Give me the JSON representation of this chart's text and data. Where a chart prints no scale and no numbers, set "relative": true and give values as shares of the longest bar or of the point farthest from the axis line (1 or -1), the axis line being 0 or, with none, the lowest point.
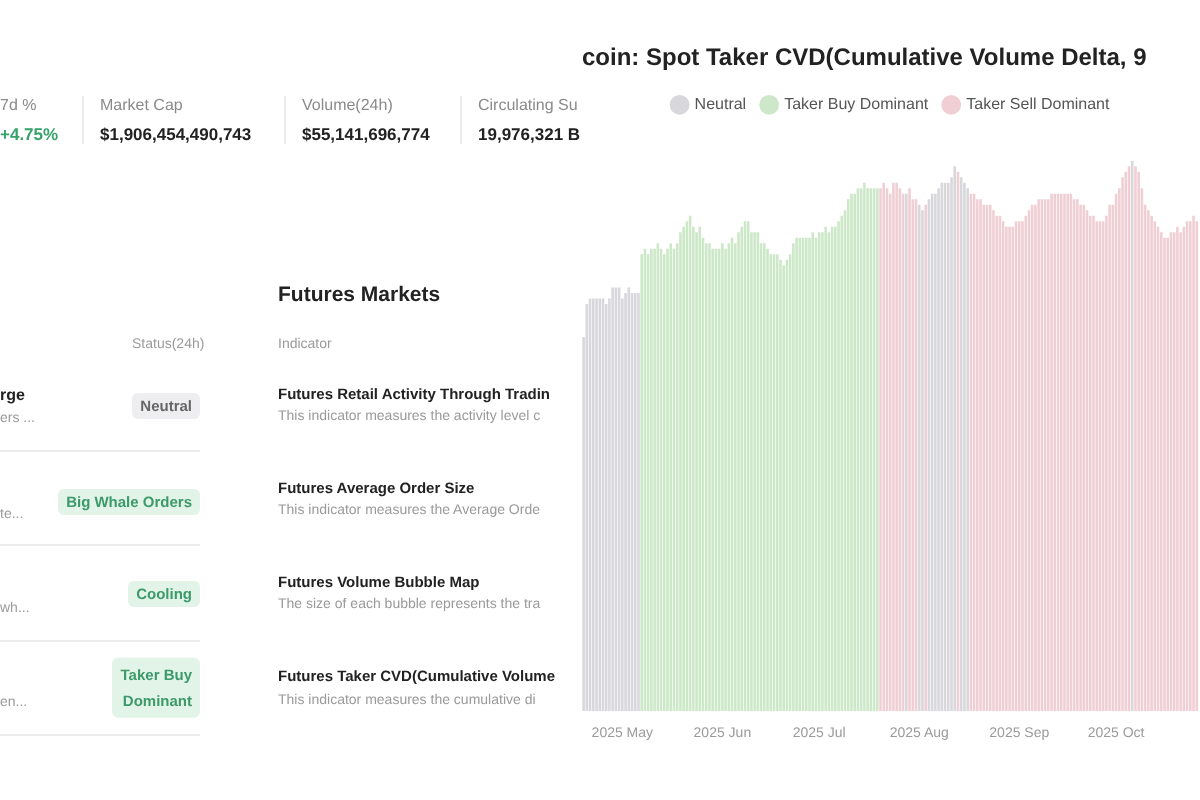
{
  "chart_data": [
    {
      "type": "other",
      "annotations": [
        "7d %",
        "+4.75%",
        "Market Cap",
        "$1,906,454,490,743",
        "Volume(24h)",
        "$55,141,696,774",
        "Circulating Su",
        "19,976,321 B",
        "Status(24h)",
        "rge",
        "ers ...",
        "Neutral",
        "te...",
        "Big Whale Orders",
        "wh...",
        "Cooling",
        "en...",
        "Taker Buy Dominant",
        "Futures Markets",
        "Indicator",
        "Futures Retail Activity Through Tradin",
        "This indicator measures the activity level c",
        "Futures Average Order Size",
        "This indicator measures the Average Orde",
        "Futures Volume Bubble Map",
        "The size of each bubble represents the tra",
        "Futures Taker CVD(Cumulative Volume",
        "This indicator measures the cumulative di"
      ]
    },
    {
      "type": "bar",
      "title": "coin: Spot Taker CVD(Cumulative Volume Delta, 9",
      "relative": true,
      "legend": "top",
      "xlim": [
        "2025-04-18T12:00",
        "2025-10-27"
      ],
      "xticks": [
        {
          "value": "2025-05-01",
          "label": "2025 May"
        },
        {
          "value": "2025-06-01",
          "label": "2025 Jun"
        },
        {
          "value": "2025-07-01",
          "label": "2025 Jul"
        },
        {
          "value": "2025-08-01",
          "label": "2025 Aug"
        },
        {
          "value": "2025-09-01",
          "label": "2025 Sep"
        },
        {
          "value": "2025-10-01",
          "label": "2025 Oct"
        }
      ],
      "series": [
        {
          "name": "Neutral",
          "color": "#d8d8dc",
          "x": [
            "2025-04-19",
            "2025-04-20",
            "2025-04-21",
            "2025-04-22",
            "2025-04-23",
            "2025-04-24",
            "2025-04-25",
            "2025-04-26",
            "2025-04-27",
            "2025-04-28",
            "2025-04-29",
            "2025-04-30",
            "2025-05-01",
            "2025-05-02",
            "2025-05-03",
            "2025-05-04",
            "2025-05-05",
            "2025-05-06",
            "2025-07-28",
            "2025-08-01",
            "2025-08-02",
            "2025-08-04",
            "2025-08-05",
            "2025-08-06",
            "2025-08-07",
            "2025-08-08",
            "2025-08-09",
            "2025-08-10",
            "2025-08-11",
            "2025-08-12",
            "2025-08-14",
            "2025-08-15",
            "2025-08-16",
            "2025-10-06"
          ],
          "values": [
            0.68,
            0.74,
            0.75,
            0.75,
            0.75,
            0.75,
            0.75,
            0.74,
            0.75,
            0.77,
            0.77,
            0.77,
            0.75,
            0.76,
            0.77,
            0.76,
            0.76,
            0.76,
            0.94,
            0.92,
            0.91,
            0.93,
            0.94,
            0.94,
            0.95,
            0.96,
            0.96,
            0.96,
            0.97,
            0.99,
            0.97,
            0.96,
            0.95,
            1
          ]
        },
        {
          "name": "Taker Buy Dominant",
          "color": "#cde8c8",
          "x": [
            "2025-05-07",
            "2025-05-08",
            "2025-05-09",
            "2025-05-10",
            "2025-05-11",
            "2025-05-12",
            "2025-05-13",
            "2025-05-14",
            "2025-05-15",
            "2025-05-16",
            "2025-05-17",
            "2025-05-18",
            "2025-05-19",
            "2025-05-20",
            "2025-05-21",
            "2025-05-22",
            "2025-05-23",
            "2025-05-24",
            "2025-05-25",
            "2025-05-26",
            "2025-05-27",
            "2025-05-28",
            "2025-05-29",
            "2025-05-30",
            "2025-05-31",
            "2025-06-01",
            "2025-06-02",
            "2025-06-03",
            "2025-06-04",
            "2025-06-05",
            "2025-06-06",
            "2025-06-07",
            "2025-06-08",
            "2025-06-09",
            "2025-06-10",
            "2025-06-11",
            "2025-06-12",
            "2025-06-13",
            "2025-06-14",
            "2025-06-15",
            "2025-06-16",
            "2025-06-17",
            "2025-06-18",
            "2025-06-19",
            "2025-06-20",
            "2025-06-21",
            "2025-06-22",
            "2025-06-23",
            "2025-06-24",
            "2025-06-25",
            "2025-06-26",
            "2025-06-27",
            "2025-06-28",
            "2025-06-29",
            "2025-06-30",
            "2025-07-01",
            "2025-07-02",
            "2025-07-03",
            "2025-07-04",
            "2025-07-05",
            "2025-07-06",
            "2025-07-07",
            "2025-07-08",
            "2025-07-09",
            "2025-07-10",
            "2025-07-11",
            "2025-07-12",
            "2025-07-13",
            "2025-07-14",
            "2025-07-15",
            "2025-07-16",
            "2025-07-17",
            "2025-07-18",
            "2025-07-19"
          ],
          "values": [
            0.83,
            0.84,
            0.83,
            0.84,
            0.84,
            0.85,
            0.84,
            0.83,
            0.84,
            0.85,
            0.84,
            0.85,
            0.87,
            0.88,
            0.89,
            0.9,
            0.88,
            0.87,
            0.88,
            0.86,
            0.85,
            0.85,
            0.84,
            0.84,
            0.84,
            0.85,
            0.84,
            0.85,
            0.86,
            0.85,
            0.87,
            0.88,
            0.89,
            0.89,
            0.87,
            0.87,
            0.87,
            0.85,
            0.85,
            0.84,
            0.83,
            0.83,
            0.83,
            0.82,
            0.81,
            0.82,
            0.83,
            0.85,
            0.86,
            0.86,
            0.86,
            0.86,
            0.86,
            0.87,
            0.86,
            0.87,
            0.87,
            0.88,
            0.87,
            0.88,
            0.88,
            0.89,
            0.9,
            0.91,
            0.93,
            0.94,
            0.94,
            0.95,
            0.95,
            0.96,
            0.95,
            0.95,
            0.95,
            0.95
          ]
        },
        {
          "name": "Taker Sell Dominant",
          "color": "#f0cfd4",
          "x": [
            "2025-07-20",
            "2025-07-21",
            "2025-07-22",
            "2025-07-23",
            "2025-07-24",
            "2025-07-25",
            "2025-07-26",
            "2025-07-27",
            "2025-07-29",
            "2025-07-30",
            "2025-07-31",
            "2025-08-03",
            "2025-08-13",
            "2025-08-17",
            "2025-08-18",
            "2025-08-19",
            "2025-08-20",
            "2025-08-21",
            "2025-08-22",
            "2025-08-23",
            "2025-08-24",
            "2025-08-25",
            "2025-08-26",
            "2025-08-27",
            "2025-08-28",
            "2025-08-29",
            "2025-08-30",
            "2025-08-31",
            "2025-09-01",
            "2025-09-02",
            "2025-09-03",
            "2025-09-04",
            "2025-09-05",
            "2025-09-06",
            "2025-09-07",
            "2025-09-08",
            "2025-09-09",
            "2025-09-10",
            "2025-09-11",
            "2025-09-12",
            "2025-09-13",
            "2025-09-14",
            "2025-09-15",
            "2025-09-16",
            "2025-09-17",
            "2025-09-18",
            "2025-09-19",
            "2025-09-20",
            "2025-09-21",
            "2025-09-22",
            "2025-09-23",
            "2025-09-24",
            "2025-09-25",
            "2025-09-26",
            "2025-09-27",
            "2025-09-28",
            "2025-09-29",
            "2025-09-30",
            "2025-10-01",
            "2025-10-02",
            "2025-10-03",
            "2025-10-04",
            "2025-10-05",
            "2025-10-07",
            "2025-10-08",
            "2025-10-09",
            "2025-10-10",
            "2025-10-11",
            "2025-10-12",
            "2025-10-13",
            "2025-10-14",
            "2025-10-15",
            "2025-10-16",
            "2025-10-17",
            "2025-10-18",
            "2025-10-19",
            "2025-10-20",
            "2025-10-21",
            "2025-10-22",
            "2025-10-23",
            "2025-10-24",
            "2025-10-25",
            "2025-10-26"
          ],
          "values": [
            0.95,
            0.96,
            0.95,
            0.94,
            0.96,
            0.96,
            0.95,
            0.94,
            0.95,
            0.93,
            0.93,
            0.92,
            0.98,
            0.94,
            0.94,
            0.93,
            0.93,
            0.92,
            0.92,
            0.92,
            0.91,
            0.9,
            0.9,
            0.89,
            0.88,
            0.88,
            0.88,
            0.89,
            0.89,
            0.89,
            0.9,
            0.91,
            0.92,
            0.92,
            0.93,
            0.93,
            0.93,
            0.93,
            0.94,
            0.94,
            0.94,
            0.94,
            0.94,
            0.94,
            0.94,
            0.93,
            0.93,
            0.92,
            0.92,
            0.91,
            0.9,
            0.9,
            0.89,
            0.89,
            0.89,
            0.9,
            0.92,
            0.92,
            0.94,
            0.95,
            0.97,
            0.98,
            0.99,
            0.99,
            0.98,
            0.95,
            0.92,
            0.91,
            0.9,
            0.89,
            0.88,
            0.87,
            0.86,
            0.86,
            0.87,
            0.87,
            0.88,
            0.87,
            0.88,
            0.89,
            0.89,
            0.9,
            0.89
          ]
        }
      ]
    }
  ]
}
